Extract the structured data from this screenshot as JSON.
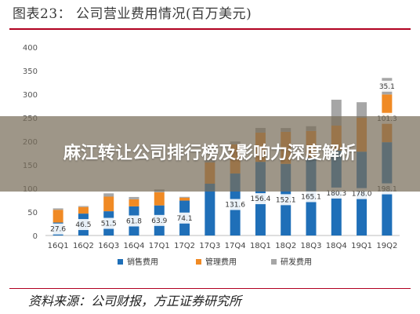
{
  "figure": {
    "title": "图表23：  公司营业费用情况(百万美元)",
    "source": "资料来源：公司财报，方正证券研究所"
  },
  "overlay": {
    "headline": "麻江转让公司排行榜及影响力深度解析"
  },
  "chart_data": {
    "type": "bar",
    "stacked": true,
    "categories": [
      "16Q1",
      "16Q2",
      "16Q3",
      "16Q4",
      "17Q1",
      "17Q2",
      "17Q3",
      "17Q4",
      "18Q1",
      "18Q2",
      "18Q3",
      "18Q4",
      "19Q1",
      "19Q2"
    ],
    "series": [
      {
        "name": "销售费用",
        "color": "#1f6fb8",
        "values": [
          27.6,
          46.5,
          51.5,
          61.8,
          63.9,
          74.1,
          110,
          131.6,
          156.4,
          152.1,
          165.1,
          180.3,
          178.0,
          198.1
        ]
      },
      {
        "name": "管理费用",
        "color": "#f08a24",
        "values": [
          27,
          14,
          31,
          15,
          28,
          6,
          45,
          62,
          62,
          68,
          57,
          53,
          72,
          101.3
        ]
      },
      {
        "name": "研发费用",
        "color": "#a6a6a6",
        "values": [
          3,
          2,
          7,
          5,
          6,
          2,
          8,
          6,
          10,
          8,
          10,
          55,
          33,
          35.1
        ]
      }
    ],
    "data_labels": {
      "sales": [
        "27.6",
        "46.5",
        "51.5",
        "61.8",
        "63.9",
        "74.1",
        "",
        "131.6",
        "156.4",
        "152.1",
        "165.1",
        "180.3",
        "178.0",
        "198.1"
      ],
      "admin": [
        "",
        "",
        "",
        "",
        "",
        "",
        "",
        "",
        "",
        "",
        "",
        "",
        "",
        "101.3"
      ],
      "rd": [
        "",
        "",
        "",
        "",
        "",
        "",
        "",
        "",
        "",
        "",
        "",
        "",
        "",
        "35.1"
      ]
    },
    "y_ticks": [
      "0",
      "50",
      "100",
      "150",
      "200",
      "250",
      "300",
      "350",
      "400"
    ],
    "ylim": [
      0,
      400
    ],
    "legend_position": "bottom",
    "grid": false
  }
}
